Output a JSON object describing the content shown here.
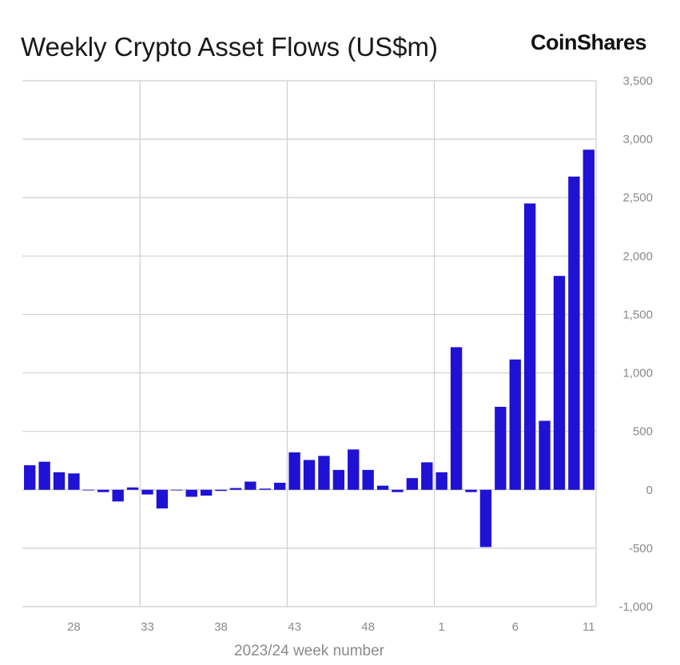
{
  "header": {
    "title": "Weekly Crypto Asset Flows (US$m)",
    "brand": "CoinShares"
  },
  "colors": {
    "bar": "#1f12d4",
    "grid": "#cfcfcf",
    "tick_text": "#8a8a8a"
  },
  "chart_data": {
    "type": "bar",
    "title": "Weekly Crypto Asset Flows (US$m)",
    "xlabel": "2023/24 week number",
    "ylabel": "",
    "ylim": [
      -1000,
      3500
    ],
    "yticks": [
      3500,
      3000,
      2500,
      2000,
      1500,
      1000,
      500,
      0,
      -500,
      -1000
    ],
    "ytick_labels": [
      "3,500",
      "3,000",
      "2,500",
      "2,000",
      "1,500",
      "1,000",
      "500",
      "0",
      "-500",
      "-1,000"
    ],
    "y_axis_position": "right",
    "grid": true,
    "legend": "none",
    "categories": [
      "25",
      "26",
      "27",
      "28",
      "29",
      "30",
      "31",
      "32",
      "33",
      "34",
      "35",
      "36",
      "37",
      "38",
      "39",
      "40",
      "41",
      "42",
      "43",
      "44",
      "45",
      "46",
      "47",
      "48",
      "49",
      "50",
      "51",
      "52",
      "1",
      "2",
      "3",
      "4",
      "5",
      "6",
      "7",
      "8",
      "9",
      "10",
      "11"
    ],
    "xtick_labels": [
      "28",
      "33",
      "38",
      "43",
      "48",
      "1",
      "6",
      "11"
    ],
    "values": [
      210,
      240,
      150,
      140,
      0,
      -20,
      -100,
      20,
      -40,
      -160,
      0,
      -60,
      -50,
      -10,
      15,
      70,
      10,
      60,
      320,
      255,
      290,
      170,
      345,
      170,
      35,
      -20,
      100,
      235,
      150,
      1220,
      -20,
      -490,
      710,
      1115,
      2450,
      590,
      1830,
      2680,
      2910
    ]
  }
}
